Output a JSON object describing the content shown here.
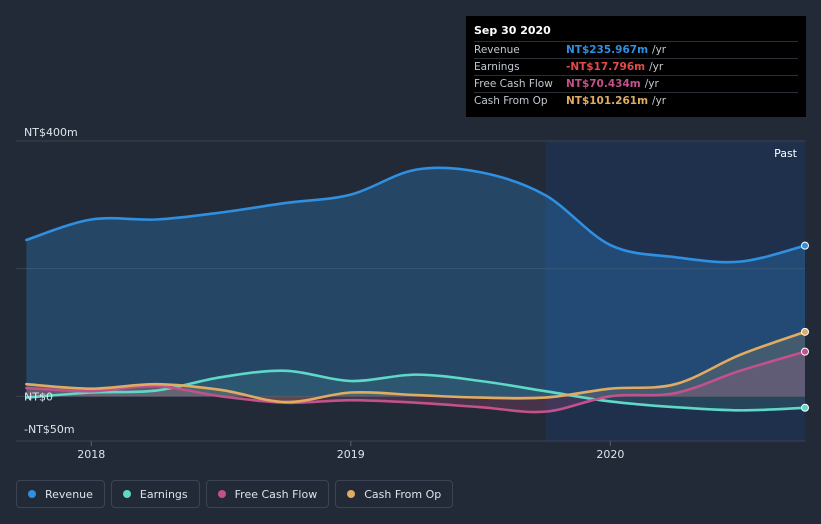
{
  "tooltip": {
    "date": "Sep 30 2020",
    "rows": [
      {
        "label": "Revenue",
        "value": "NT$235.967m",
        "unit": "/yr",
        "color": "#2f8fe0"
      },
      {
        "label": "Earnings",
        "value": "-NT$17.796m",
        "unit": "/yr",
        "color": "#e24b4b"
      },
      {
        "label": "Free Cash Flow",
        "value": "NT$70.434m",
        "unit": "/yr",
        "color": "#c2518c"
      },
      {
        "label": "Cash From Op",
        "value": "NT$101.261m",
        "unit": "/yr",
        "color": "#e0ab62"
      }
    ]
  },
  "legend": [
    {
      "label": "Revenue",
      "color": "#2f8fe0"
    },
    {
      "label": "Earnings",
      "color": "#5fd8c8"
    },
    {
      "label": "Free Cash Flow",
      "color": "#c2518c"
    },
    {
      "label": "Cash From Op",
      "color": "#e0ab62"
    }
  ],
  "chart_data": {
    "type": "area",
    "ytick_labels": [
      "NT$400m",
      "NT$0",
      "-NT$50m"
    ],
    "yticks": [
      400,
      0,
      -50
    ],
    "ylim": [
      -70,
      400
    ],
    "xlim": [
      2017.71,
      2020.75
    ],
    "xticks": [
      2018,
      2019,
      2020
    ],
    "xtick_labels": [
      "2018",
      "2019",
      "2020"
    ],
    "past_label": "Past",
    "past_start": 2019.75,
    "series": [
      {
        "name": "Revenue",
        "color": "#2f8fe0",
        "x": [
          2017.75,
          2018.0,
          2018.25,
          2018.5,
          2018.75,
          2019.0,
          2019.25,
          2019.5,
          2019.75,
          2020.0,
          2020.25,
          2020.5,
          2020.75
        ],
        "y": [
          245,
          277,
          277,
          288,
          303,
          316,
          355,
          351,
          315,
          237,
          218,
          211,
          236
        ]
      },
      {
        "name": "Earnings",
        "color": "#5fd8c8",
        "x": [
          2017.75,
          2018.0,
          2018.25,
          2018.5,
          2018.75,
          2019.0,
          2019.25,
          2019.5,
          2019.75,
          2020.0,
          2020.25,
          2020.5,
          2020.75
        ],
        "y": [
          -2,
          6,
          9,
          30,
          40,
          24,
          34,
          24,
          8,
          -8,
          -17,
          -22,
          -18
        ]
      },
      {
        "name": "Free Cash Flow",
        "color": "#c2518c",
        "x": [
          2017.75,
          2018.0,
          2018.25,
          2018.5,
          2018.75,
          2019.0,
          2019.25,
          2019.5,
          2019.75,
          2020.0,
          2020.25,
          2020.5,
          2020.75
        ],
        "y": [
          13,
          8,
          16,
          0,
          -10,
          -6,
          -10,
          -17,
          -24,
          0,
          5,
          40,
          70
        ]
      },
      {
        "name": "Cash From Op",
        "color": "#e0ab62",
        "x": [
          2017.75,
          2018.0,
          2018.25,
          2018.5,
          2018.75,
          2019.0,
          2019.25,
          2019.5,
          2019.75,
          2020.0,
          2020.25,
          2020.5,
          2020.75
        ],
        "y": [
          19,
          12,
          19,
          10,
          -9,
          6,
          2,
          -2,
          -2,
          12,
          19,
          65,
          101
        ]
      }
    ]
  }
}
